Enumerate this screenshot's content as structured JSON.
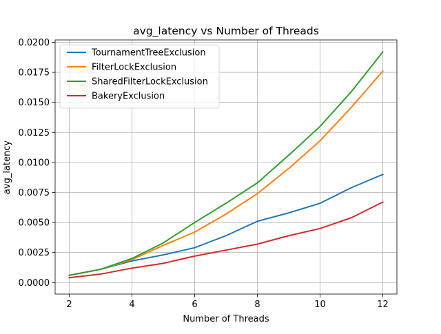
{
  "chart_data": {
    "type": "line",
    "title": "avg_latency vs Number of Threads",
    "xlabel": "Number of Threads",
    "ylabel": "avg_latency",
    "x": [
      2,
      3,
      4,
      5,
      6,
      7,
      8,
      9,
      10,
      11,
      12
    ],
    "xlim": [
      1.55,
      12.45
    ],
    "ylim": [
      -0.00096,
      0.0202
    ],
    "xticks": [
      2,
      4,
      6,
      8,
      10,
      12
    ],
    "xtick_labels": [
      "2",
      "4",
      "6",
      "8",
      "10",
      "12"
    ],
    "yticks": [
      0.0,
      0.0025,
      0.005,
      0.0075,
      0.01,
      0.0125,
      0.015,
      0.0175,
      0.02
    ],
    "ytick_labels": [
      "0.0000",
      "0.0025",
      "0.0050",
      "0.0075",
      "0.0100",
      "0.0125",
      "0.0150",
      "0.0175",
      "0.0200"
    ],
    "grid": true,
    "legend_position": "top-left",
    "series": [
      {
        "name": "TournamentTreeExclusion",
        "color": "#1f77b4",
        "values": [
          0.0006,
          0.0011,
          0.0018,
          0.0023,
          0.0029,
          0.0039,
          0.0051,
          0.0058,
          0.0066,
          0.0079,
          0.009
        ]
      },
      {
        "name": "FilterLockExclusion",
        "color": "#ff7f0e",
        "values": [
          0.0006,
          0.0011,
          0.0019,
          0.0031,
          0.0042,
          0.0057,
          0.0074,
          0.0095,
          0.0118,
          0.0146,
          0.0176
        ]
      },
      {
        "name": "SharedFilterLockExclusion",
        "color": "#2ca02c",
        "values": [
          0.0006,
          0.0011,
          0.002,
          0.0033,
          0.005,
          0.0066,
          0.0083,
          0.0106,
          0.013,
          0.0159,
          0.0192
        ]
      },
      {
        "name": "BakeryExclusion",
        "color": "#d62728",
        "values": [
          0.0004,
          0.0007,
          0.0012,
          0.0016,
          0.0022,
          0.0027,
          0.0032,
          0.0039,
          0.0045,
          0.0054,
          0.0067
        ]
      }
    ]
  }
}
